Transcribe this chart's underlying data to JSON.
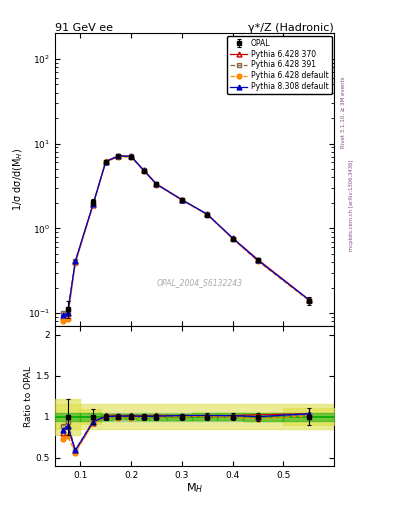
{
  "title_left": "91 GeV ee",
  "title_right": "γ*/Z (Hadronic)",
  "ylabel_main": "1/σ dσ/d(M$_H$)",
  "ylabel_ratio": "Ratio to OPAL",
  "xlabel": "M$_H$",
  "watermark": "OPAL_2004_S6132243",
  "rivet_label": "Rivet 3.1.10, ≥ 3M events",
  "arxiv_label": "mcplots.cern.ch [arXiv:1306.3436]",
  "xlim": [
    0.05,
    0.6
  ],
  "ylim_main": [
    0.07,
    200
  ],
  "ylim_ratio": [
    0.4,
    2.1
  ],
  "opal_x": [
    0.075,
    0.125,
    0.15,
    0.175,
    0.2,
    0.225,
    0.25,
    0.3,
    0.35,
    0.4,
    0.45,
    0.55
  ],
  "opal_y": [
    0.113,
    2.05,
    6.1,
    7.1,
    7.0,
    4.8,
    3.3,
    2.15,
    1.45,
    0.76,
    0.42,
    0.14
  ],
  "opal_yerr": [
    0.025,
    0.18,
    0.22,
    0.22,
    0.22,
    0.18,
    0.12,
    0.08,
    0.06,
    0.03,
    0.02,
    0.015
  ],
  "py6428_370_x": [
    0.065,
    0.075,
    0.09,
    0.125,
    0.15,
    0.175,
    0.2,
    0.225,
    0.25,
    0.3,
    0.35,
    0.4,
    0.45,
    0.55
  ],
  "py6428_370_y": [
    0.09,
    0.1,
    0.4,
    1.9,
    6.2,
    7.2,
    7.1,
    4.85,
    3.35,
    2.18,
    1.47,
    0.77,
    0.43,
    0.145
  ],
  "py6428_391_x": [
    0.065,
    0.075,
    0.09,
    0.125,
    0.15,
    0.175,
    0.2,
    0.225,
    0.25,
    0.3,
    0.35,
    0.4,
    0.45,
    0.55
  ],
  "py6428_391_y": [
    0.1,
    0.105,
    0.41,
    1.95,
    6.15,
    7.15,
    7.05,
    4.82,
    3.32,
    2.17,
    1.46,
    0.76,
    0.42,
    0.143
  ],
  "py6428_def_x": [
    0.065,
    0.075,
    0.09,
    0.125,
    0.15,
    0.175,
    0.2,
    0.225,
    0.25,
    0.3,
    0.35,
    0.4,
    0.45,
    0.55
  ],
  "py6428_def_y": [
    0.082,
    0.086,
    0.39,
    1.88,
    6.05,
    7.0,
    6.9,
    4.78,
    3.28,
    2.15,
    1.45,
    0.755,
    0.41,
    0.141
  ],
  "py8308_def_x": [
    0.065,
    0.075,
    0.09,
    0.125,
    0.15,
    0.175,
    0.2,
    0.225,
    0.25,
    0.3,
    0.35,
    0.4,
    0.45,
    0.55
  ],
  "py8308_def_y": [
    0.095,
    0.1,
    0.41,
    1.92,
    6.1,
    7.15,
    7.05,
    4.82,
    3.32,
    2.18,
    1.47,
    0.77,
    0.42,
    0.145
  ],
  "color_opal": "#000000",
  "color_py6428_370": "#cc0000",
  "color_py6428_391": "#886644",
  "color_py6428_def": "#ff8800",
  "color_py8308_def": "#0000cc",
  "color_green_band_dark": "#00aa00",
  "color_green_band_light": "#88cc88",
  "color_yellow_band": "#dddd44",
  "xticks": [
    0.1,
    0.2,
    0.3,
    0.4,
    0.5
  ],
  "yticks_ratio": [
    0.5,
    1.0,
    1.5,
    2.0
  ],
  "ratio_band_yellow": 0.15,
  "ratio_band_green": 0.05
}
